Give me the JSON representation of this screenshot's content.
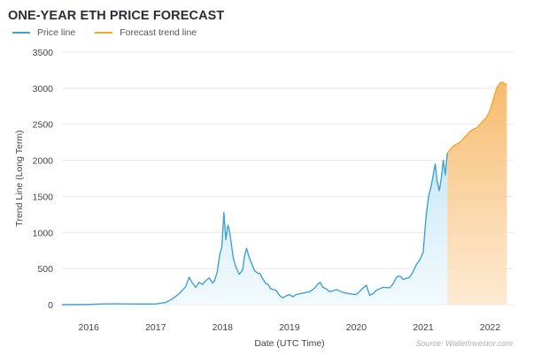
{
  "chart_data": {
    "type": "line",
    "title": "ONE-YEAR ETH PRICE FORECAST",
    "xlabel": "Date (UTC Time)",
    "ylabel": "Trend Line (Long Term)",
    "source": "Source: WalletInvestor.com",
    "ylim": [
      0,
      3500
    ],
    "xlim": [
      2015.6,
      2022.35
    ],
    "yticks": [
      0,
      500,
      1000,
      1500,
      2000,
      2500,
      3000,
      3500
    ],
    "xticks": [
      {
        "label": "2016",
        "value": 2016.0
      },
      {
        "label": "2017",
        "value": 2017.0
      },
      {
        "label": "2018",
        "value": 2018.0
      },
      {
        "label": "2019",
        "value": 2019.0
      },
      {
        "label": "2020",
        "value": 2020.0
      },
      {
        "label": "2021",
        "value": 2021.0
      },
      {
        "label": "2022",
        "value": 2022.0
      }
    ],
    "grid": true,
    "legend_position": "top-left",
    "colors": {
      "price": "#3fa3d1",
      "forecast": "#f0a830",
      "forecast_fill": "#f8c68a",
      "price_fill": "#d4edf8",
      "grid": "#e8e8e8"
    },
    "series": [
      {
        "name": "Price line",
        "x": [
          2015.6,
          2015.8,
          2016.0,
          2016.2,
          2016.4,
          2016.6,
          2016.8,
          2017.0,
          2017.15,
          2017.25,
          2017.35,
          2017.45,
          2017.5,
          2017.55,
          2017.6,
          2017.65,
          2017.7,
          2017.75,
          2017.8,
          2017.85,
          2017.88,
          2017.92,
          2017.96,
          2017.99,
          2018.02,
          2018.05,
          2018.08,
          2018.1,
          2018.13,
          2018.16,
          2018.2,
          2018.25,
          2018.3,
          2018.33,
          2018.36,
          2018.4,
          2018.44,
          2018.48,
          2018.52,
          2018.56,
          2018.6,
          2018.64,
          2018.68,
          2018.72,
          2018.76,
          2018.8,
          2018.85,
          2018.9,
          2018.95,
          2019.0,
          2019.05,
          2019.1,
          2019.2,
          2019.3,
          2019.38,
          2019.42,
          2019.46,
          2019.5,
          2019.55,
          2019.6,
          2019.65,
          2019.7,
          2019.8,
          2019.9,
          2020.0,
          2020.1,
          2020.15,
          2020.2,
          2020.25,
          2020.3,
          2020.4,
          2020.5,
          2020.55,
          2020.6,
          2020.65,
          2020.7,
          2020.8,
          2020.85,
          2020.9,
          2020.95,
          2021.0,
          2021.04,
          2021.08,
          2021.12,
          2021.15,
          2021.18,
          2021.21,
          2021.24,
          2021.27,
          2021.3,
          2021.33,
          2021.36
        ],
        "y": [
          0,
          0,
          3,
          10,
          12,
          10,
          9,
          10,
          30,
          80,
          150,
          250,
          380,
          300,
          240,
          310,
          280,
          330,
          370,
          300,
          330,
          450,
          700,
          800,
          1280,
          900,
          1100,
          1050,
          850,
          650,
          520,
          420,
          480,
          680,
          780,
          650,
          560,
          470,
          440,
          430,
          360,
          300,
          280,
          220,
          210,
          200,
          130,
          95,
          120,
          140,
          110,
          140,
          160,
          180,
          230,
          280,
          310,
          240,
          220,
          180,
          190,
          210,
          170,
          150,
          140,
          230,
          270,
          130,
          150,
          200,
          240,
          235,
          290,
          380,
          400,
          350,
          380,
          460,
          560,
          620,
          730,
          1200,
          1500,
          1650,
          1800,
          1950,
          1700,
          1580,
          1750,
          2000,
          1800,
          2100
        ]
      },
      {
        "name": "Forecast trend line",
        "x": [
          2021.36,
          2021.45,
          2021.55,
          2021.6,
          2021.65,
          2021.7,
          2021.75,
          2021.8,
          2021.85,
          2021.9,
          2021.95,
          2022.0,
          2022.05,
          2022.08,
          2022.1,
          2022.13,
          2022.16,
          2022.2,
          2022.22,
          2022.25
        ],
        "y": [
          2100,
          2200,
          2250,
          2300,
          2350,
          2400,
          2430,
          2450,
          2500,
          2550,
          2600,
          2700,
          2850,
          2950,
          3000,
          3050,
          3080,
          3080,
          3050,
          3060
        ]
      }
    ]
  }
}
